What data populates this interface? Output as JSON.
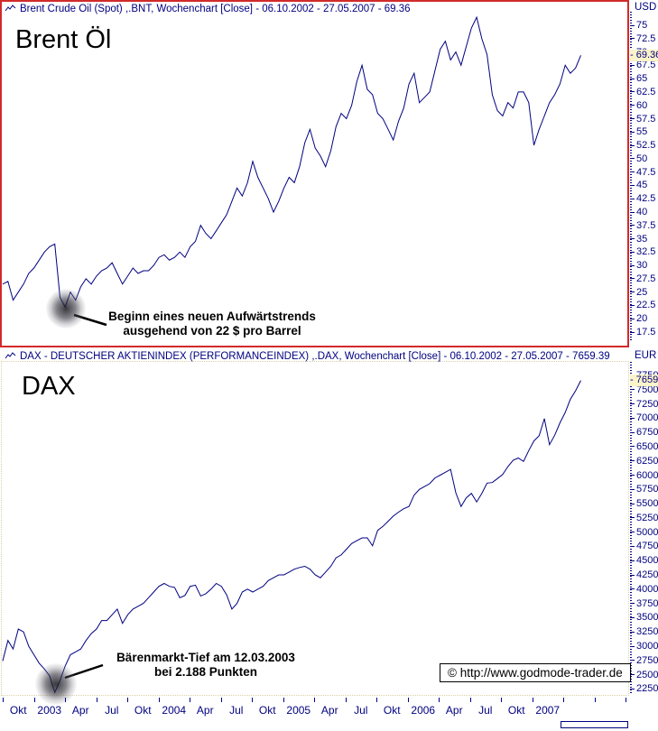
{
  "panels": [
    {
      "header": "Brent Crude Oil (Spot) ,.BNT, Wochenchart [Close] - 06.10.2002 - 27.05.2007 - 69.36",
      "big_label": "Brent Öl",
      "unit": "USD",
      "current_value": "69.36",
      "annotation": {
        "line1": "Beginn eines neuen Aufwärtstrends",
        "line2": "ausgehend von 22 $ pro Barrel"
      }
    },
    {
      "header": "DAX  - DEUTSCHER AKTIENINDEX (PERFORMANCEINDEX) ,.DAX, Wochenchart [Close] - 06.10.2002 - 27.05.2007 - 7659.39",
      "big_label": "DAX",
      "unit": "EUR",
      "current_value": "7659.39",
      "annotation": {
        "line1": "Bärenmarkt-Tief am 12.03.2003",
        "line2": "bei 2.188 Punkten"
      }
    }
  ],
  "x_axis": {
    "labels": [
      "Okt",
      "2003",
      "Apr",
      "Jul",
      "Okt",
      "2004",
      "Apr",
      "Jul",
      "Okt",
      "2005",
      "Apr",
      "Jul",
      "Okt",
      "2006",
      "Apr",
      "Jul",
      "Okt",
      "2007"
    ]
  },
  "watermark": "© http://www.godmode-trader.de",
  "chart_data": [
    {
      "type": "line",
      "title": "Brent Crude Oil (Spot) ,.BNT, Wochenchart [Close]",
      "date_range": "06.10.2002 - 27.05.2007",
      "unit": "USD",
      "last_close": 69.36,
      "ylim": [
        17.5,
        78.5
      ],
      "ytick_step": 2.5,
      "ytick_labels_from": 75,
      "ytick_labels_to": 17.5,
      "grid": false,
      "legend": false,
      "x_labels": [
        "Okt",
        "2003",
        "Apr",
        "Jul",
        "Okt",
        "2004",
        "Apr",
        "Jul",
        "Okt",
        "2005",
        "Apr",
        "Jul",
        "Okt",
        "2006",
        "Apr",
        "Jul",
        "Okt",
        "2007"
      ],
      "values_sampling": "~2-week intervals, estimated from plot, Okt 2002 bis Mai 2007",
      "values": [
        26.5,
        27.0,
        23.5,
        25.0,
        26.5,
        28.5,
        29.5,
        31.0,
        32.5,
        33.5,
        34.0,
        24.0,
        22.2,
        25.0,
        23.5,
        26.0,
        27.5,
        26.5,
        28.0,
        29.0,
        29.5,
        30.5,
        28.5,
        26.5,
        28.0,
        29.5,
        28.5,
        29.0,
        29.0,
        30.0,
        31.5,
        32.0,
        31.0,
        31.5,
        32.5,
        31.5,
        33.5,
        34.5,
        37.5,
        36.0,
        35.0,
        36.5,
        38.0,
        39.5,
        42.0,
        44.5,
        43.0,
        45.5,
        49.5,
        46.5,
        44.5,
        42.5,
        40.0,
        42.0,
        44.5,
        46.5,
        45.5,
        48.5,
        53.0,
        55.5,
        52.0,
        50.5,
        48.5,
        51.5,
        56.0,
        58.5,
        57.5,
        60.0,
        64.5,
        67.5,
        63.0,
        62.0,
        58.5,
        57.5,
        55.5,
        53.5,
        57.0,
        59.5,
        64.0,
        66.0,
        60.5,
        61.5,
        62.5,
        66.5,
        70.5,
        72.0,
        68.5,
        70.0,
        67.5,
        71.0,
        74.5,
        76.5,
        72.5,
        69.5,
        62.0,
        59.0,
        58.0,
        60.5,
        59.5,
        62.5,
        62.5,
        60.5,
        52.5,
        55.5,
        58.0,
        60.5,
        62.0,
        64.0,
        67.5,
        66.0,
        67.0,
        69.36
      ],
      "annotation": "Beginn eines neuen Aufwärtstrends ausgehend von 22 $ pro Barrel"
    },
    {
      "type": "line",
      "title": "DAX - DEUTSCHER AKTIENINDEX (PERFORMANCEINDEX) ,.DAX, Wochenchart [Close]",
      "date_range": "06.10.2002 - 27.05.2007",
      "unit": "EUR",
      "last_close": 7659.39,
      "ylim": [
        2188,
        7750
      ],
      "ytick_step": 250,
      "ytick_labels_from": 7750,
      "ytick_labels_to": 2250,
      "grid": false,
      "legend": false,
      "x_labels": [
        "Okt",
        "2003",
        "Apr",
        "Jul",
        "Okt",
        "2004",
        "Apr",
        "Jul",
        "Okt",
        "2005",
        "Apr",
        "Jul",
        "Okt",
        "2006",
        "Apr",
        "Jul",
        "Okt",
        "2007"
      ],
      "values_sampling": "~2-week intervals, estimated from plot, Okt 2002 bis Mai 2007",
      "values": [
        2740,
        3100,
        2950,
        3300,
        3250,
        3000,
        2850,
        2700,
        2600,
        2480,
        2188,
        2400,
        2650,
        2850,
        2900,
        2950,
        3100,
        3220,
        3300,
        3450,
        3450,
        3550,
        3650,
        3400,
        3550,
        3650,
        3700,
        3750,
        3850,
        3950,
        4050,
        4100,
        4050,
        4030,
        3850,
        3890,
        4050,
        4070,
        3880,
        3920,
        4000,
        4100,
        4050,
        3900,
        3650,
        3750,
        3950,
        4000,
        3950,
        4000,
        4050,
        4150,
        4200,
        4250,
        4250,
        4300,
        4350,
        4380,
        4400,
        4350,
        4250,
        4200,
        4300,
        4400,
        4550,
        4600,
        4700,
        4800,
        4850,
        4900,
        4900,
        4760,
        5030,
        5100,
        5190,
        5280,
        5350,
        5410,
        5450,
        5650,
        5750,
        5800,
        5850,
        5950,
        6000,
        6050,
        6100,
        5690,
        5450,
        5600,
        5680,
        5530,
        5680,
        5860,
        5870,
        5940,
        6010,
        6150,
        6260,
        6300,
        6240,
        6430,
        6600,
        6690,
        6990,
        6534,
        6700,
        6917,
        7100,
        7330,
        7480,
        7659.39
      ],
      "annotation": "Bärenmarkt-Tief am 12.03.2003 bei 2.188 Punkten"
    }
  ]
}
